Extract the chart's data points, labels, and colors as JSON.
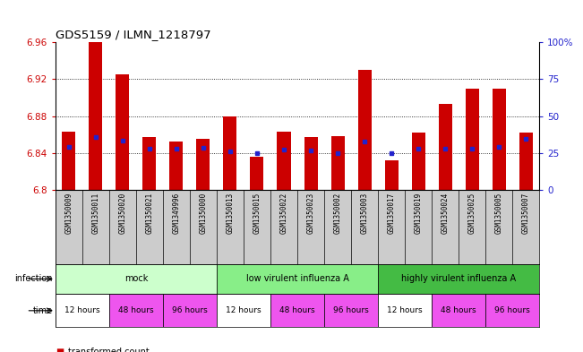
{
  "title": "GDS5159 / ILMN_1218797",
  "samples": [
    "GSM1350009",
    "GSM1350011",
    "GSM1350020",
    "GSM1350021",
    "GSM1349996",
    "GSM1350000",
    "GSM1350013",
    "GSM1350015",
    "GSM1350022",
    "GSM1350023",
    "GSM1350002",
    "GSM1350003",
    "GSM1350017",
    "GSM1350019",
    "GSM1350024",
    "GSM1350025",
    "GSM1350005",
    "GSM1350007"
  ],
  "bar_values": [
    6.863,
    6.96,
    6.925,
    6.857,
    6.853,
    6.855,
    6.88,
    6.836,
    6.863,
    6.857,
    6.858,
    6.93,
    6.832,
    6.862,
    6.893,
    6.91,
    6.91,
    6.862
  ],
  "blue_values": [
    6.847,
    6.857,
    6.854,
    6.845,
    6.845,
    6.846,
    6.842,
    6.84,
    6.844,
    6.843,
    6.84,
    6.853,
    6.84,
    6.845,
    6.845,
    6.845,
    6.847,
    6.855
  ],
  "ymin": 6.8,
  "ymax": 6.96,
  "yticks": [
    6.8,
    6.84,
    6.88,
    6.92,
    6.96
  ],
  "right_yticks": [
    0,
    25,
    50,
    75,
    100
  ],
  "right_ytick_labels": [
    "0",
    "25",
    "50",
    "75",
    "100%"
  ],
  "bar_color": "#cc0000",
  "blue_color": "#2222cc",
  "inf_colors": [
    "#ccffcc",
    "#88ee88",
    "#44bb44"
  ],
  "inf_labels": [
    "mock",
    "low virulent influenza A",
    "highly virulent influenza A"
  ],
  "inf_starts": [
    0,
    6,
    12
  ],
  "inf_ends": [
    6,
    12,
    18
  ],
  "time_seq": [
    "12 hours",
    "48 hours",
    "96 hours",
    "12 hours",
    "48 hours",
    "96 hours",
    "12 hours",
    "48 hours",
    "96 hours"
  ],
  "time_starts": [
    0,
    2,
    4,
    6,
    8,
    10,
    12,
    14,
    16
  ],
  "time_ends": [
    2,
    4,
    6,
    8,
    10,
    12,
    14,
    16,
    18
  ],
  "time_color_map": {
    "12 hours": "#ffffff",
    "48 hours": "#ee55ee",
    "96 hours": "#ee55ee"
  },
  "bg_color": "#ffffff",
  "left_tick_color": "#cc0000",
  "right_tick_color": "#2222cc",
  "grid_yticks": [
    6.84,
    6.88,
    6.92
  ],
  "label_area_color": "#cccccc",
  "bar_width": 0.5
}
